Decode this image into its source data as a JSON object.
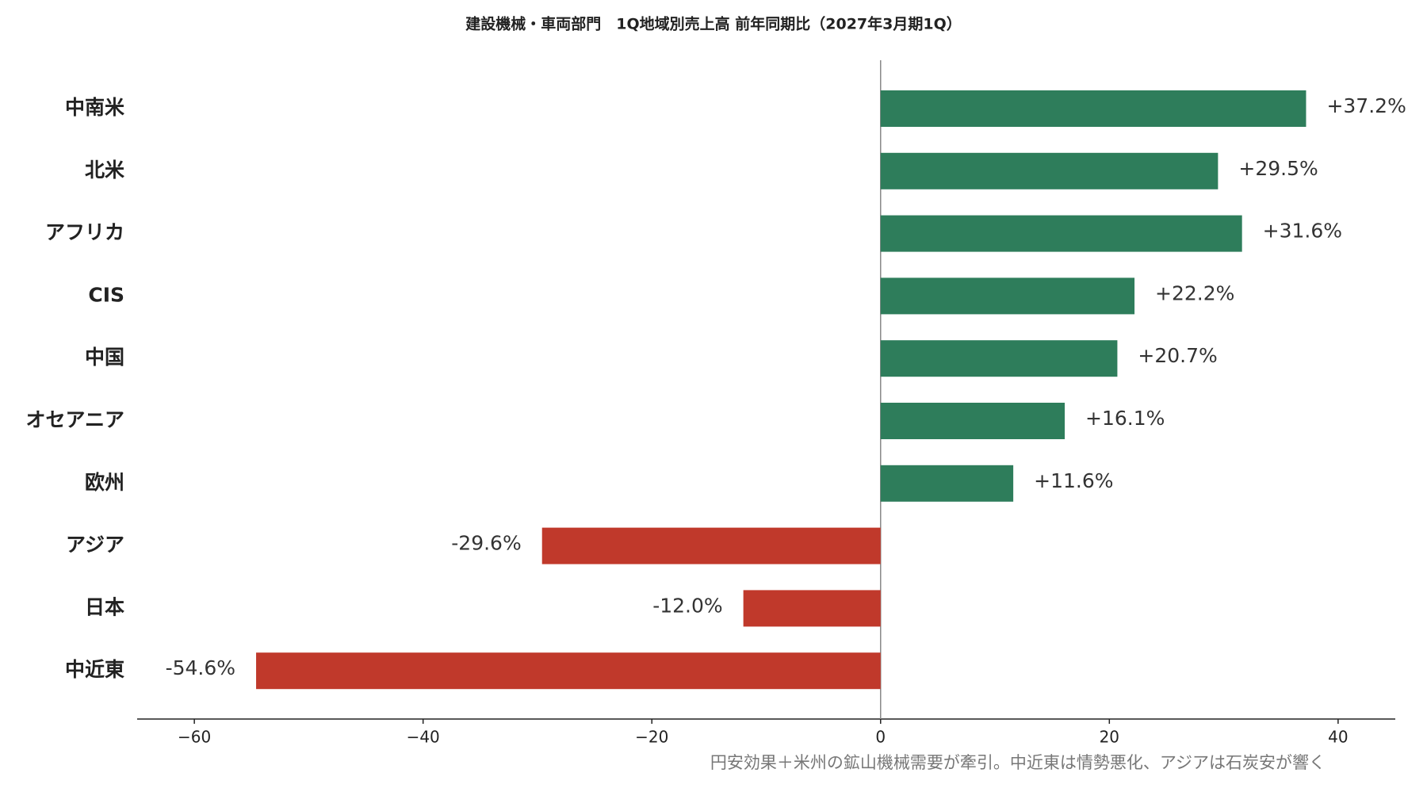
{
  "chart_data": {
    "type": "barh",
    "title": "建設機械・車両部門　1Q地域別売上高 前年同期比（2027年3月期1Q）",
    "annotation": "円安効果＋米州の鉱山機械需要が牽引。中近東は情勢悪化、アジアは石炭安が響く",
    "categories": [
      "中南米",
      "北米",
      "アフリカ",
      "CIS",
      "中国",
      "オセアニア",
      "欧州",
      "アジア",
      "日本",
      "中近東"
    ],
    "values": [
      37.2,
      29.5,
      31.6,
      22.2,
      20.7,
      16.1,
      11.6,
      -29.6,
      -12.0,
      -54.6
    ],
    "value_labels": [
      "+37.2%",
      "+29.5%",
      "+31.6%",
      "+22.2%",
      "+20.7%",
      "+16.1%",
      "+11.6%",
      "-29.6%",
      "-12.0%",
      "-54.6%"
    ],
    "colors": [
      "#2e7d5b",
      "#2e7d5b",
      "#2e7d5b",
      "#2e7d5b",
      "#2e7d5b",
      "#2e7d5b",
      "#2e7d5b",
      "#c0392b",
      "#c0392b",
      "#c0392b"
    ],
    "xlim": [
      -65,
      45
    ],
    "xticks": [
      {
        "value": -60,
        "label": "−60"
      },
      {
        "value": -40,
        "label": "−40"
      },
      {
        "value": -20,
        "label": "−20"
      },
      0,
      20,
      40
    ],
    "grid": false
  }
}
